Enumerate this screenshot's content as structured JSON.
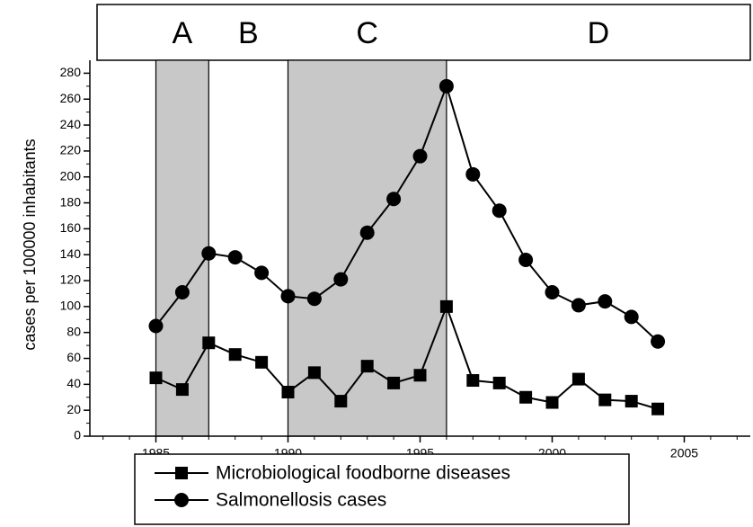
{
  "chart_data": {
    "type": "line",
    "y_label": "cases per 100000 inhabitants",
    "x": [
      1985,
      1986,
      1987,
      1988,
      1989,
      1990,
      1991,
      1992,
      1993,
      1994,
      1995,
      1996,
      1997,
      1998,
      1999,
      2000,
      2001,
      2002,
      2003,
      2004
    ],
    "series": [
      {
        "name": "Microbiological foodborne diseases",
        "color": "#000000",
        "marker": "square",
        "values": [
          45,
          36,
          72,
          63,
          57,
          34,
          49,
          27,
          54,
          41,
          47,
          100,
          43,
          41,
          30,
          26,
          44,
          28,
          27,
          21
        ]
      },
      {
        "name": "Salmonellosis cases",
        "color": "#000000",
        "marker": "circle",
        "values": [
          85,
          111,
          141,
          138,
          126,
          108,
          106,
          121,
          157,
          183,
          216,
          270,
          202,
          174,
          136,
          111,
          101,
          104,
          92,
          73
        ]
      }
    ],
    "periods": [
      {
        "label": "A",
        "start": 1985,
        "end": 1987,
        "shaded": true
      },
      {
        "label": "B",
        "start": 1987,
        "end": 1990,
        "shaded": false
      },
      {
        "label": "C",
        "start": 1990,
        "end": 1996,
        "shaded": true
      },
      {
        "label": "D",
        "start": 1996,
        "end": 2007.5,
        "shaded": false
      }
    ],
    "xlim": [
      1982.5,
      2007.5
    ],
    "xticks": [
      1985,
      1990,
      1995,
      2000,
      2005
    ],
    "ylim": [
      0,
      290
    ],
    "yticks": [
      0,
      20,
      40,
      60,
      80,
      100,
      120,
      140,
      160,
      180,
      200,
      220,
      240,
      260,
      280
    ],
    "shade_color": "#c8c8c8"
  }
}
